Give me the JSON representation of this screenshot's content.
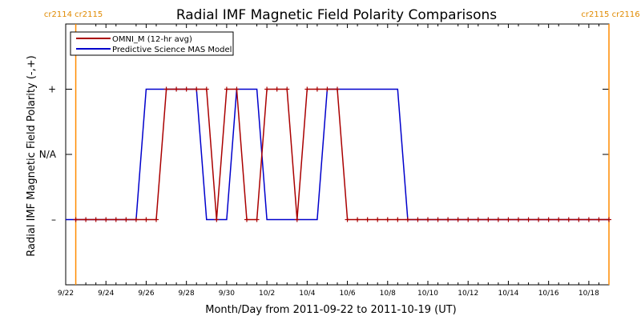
{
  "chart_data": {
    "type": "line",
    "title": "Radial IMF Magnetic Field Polarity Comparisons",
    "xlabel": "Month/Day from 2011-09-22 to 2011-10-19 (UT)",
    "ylabel": "Radial IMF Magnetic Field Polarity (-,+)",
    "xlim": [
      "2011-09-22",
      "2011-10-19"
    ],
    "ylim": [
      -2,
      2
    ],
    "x_ticks": [
      {
        "date": "2011-09-22",
        "label": "9/22"
      },
      {
        "date": "2011-09-24",
        "label": "9/24"
      },
      {
        "date": "2011-09-26",
        "label": "9/26"
      },
      {
        "date": "2011-09-28",
        "label": "9/28"
      },
      {
        "date": "2011-09-30",
        "label": "9/30"
      },
      {
        "date": "2011-10-02",
        "label": "10/2"
      },
      {
        "date": "2011-10-04",
        "label": "10/4"
      },
      {
        "date": "2011-10-06",
        "label": "10/6"
      },
      {
        "date": "2011-10-08",
        "label": "10/8"
      },
      {
        "date": "2011-10-10",
        "label": "10/10"
      },
      {
        "date": "2011-10-12",
        "label": "10/12"
      },
      {
        "date": "2011-10-14",
        "label": "10/14"
      },
      {
        "date": "2011-10-16",
        "label": "10/16"
      },
      {
        "date": "2011-10-18",
        "label": "10/18"
      }
    ],
    "y_ticks": [
      {
        "value": 1,
        "label": "+"
      },
      {
        "value": 0,
        "label": "N/A"
      },
      {
        "value": -1,
        "label": "–"
      }
    ],
    "carrington_rotations": [
      {
        "date": "2011-09-22 12:00",
        "labels": [
          "cr2114",
          "cr2115"
        ],
        "side": "left"
      },
      {
        "date": "2011-10-19 00:00",
        "labels": [
          "cr2115",
          "cr2116"
        ],
        "side": "right"
      }
    ],
    "legend": {
      "placement": "top-left"
    },
    "colors": {
      "omni": "#aa0000",
      "mas": "#0000cc",
      "cr_line": "#ff8c00",
      "cr_text": "#e08a00"
    },
    "series": [
      {
        "name": "OMNI_M (12-hr avg)",
        "marker": "plus",
        "points": [
          [
            "2011-09-22 12:00",
            -1
          ],
          [
            "2011-09-23 00:00",
            -1
          ],
          [
            "2011-09-23 12:00",
            -1
          ],
          [
            "2011-09-24 00:00",
            -1
          ],
          [
            "2011-09-24 12:00",
            -1
          ],
          [
            "2011-09-25 00:00",
            -1
          ],
          [
            "2011-09-25 12:00",
            -1
          ],
          [
            "2011-09-26 00:00",
            -1
          ],
          [
            "2011-09-26 12:00",
            -1
          ],
          [
            "2011-09-27 00:00",
            1
          ],
          [
            "2011-09-27 12:00",
            1
          ],
          [
            "2011-09-28 00:00",
            1
          ],
          [
            "2011-09-28 12:00",
            1
          ],
          [
            "2011-09-29 00:00",
            1
          ],
          [
            "2011-09-29 12:00",
            -1
          ],
          [
            "2011-09-30 00:00",
            1
          ],
          [
            "2011-09-30 12:00",
            1
          ],
          [
            "2011-10-01 00:00",
            -1
          ],
          [
            "2011-10-01 12:00",
            -1
          ],
          [
            "2011-10-02 00:00",
            1
          ],
          [
            "2011-10-02 12:00",
            1
          ],
          [
            "2011-10-03 00:00",
            1
          ],
          [
            "2011-10-03 12:00",
            -1
          ],
          [
            "2011-10-04 00:00",
            1
          ],
          [
            "2011-10-04 12:00",
            1
          ],
          [
            "2011-10-05 00:00",
            1
          ],
          [
            "2011-10-05 12:00",
            1
          ],
          [
            "2011-10-06 00:00",
            -1
          ],
          [
            "2011-10-06 12:00",
            -1
          ],
          [
            "2011-10-07 00:00",
            -1
          ],
          [
            "2011-10-07 12:00",
            -1
          ],
          [
            "2011-10-08 00:00",
            -1
          ],
          [
            "2011-10-08 12:00",
            -1
          ],
          [
            "2011-10-09 00:00",
            -1
          ],
          [
            "2011-10-09 12:00",
            -1
          ],
          [
            "2011-10-10 00:00",
            -1
          ],
          [
            "2011-10-10 12:00",
            -1
          ],
          [
            "2011-10-11 00:00",
            -1
          ],
          [
            "2011-10-11 12:00",
            -1
          ],
          [
            "2011-10-12 00:00",
            -1
          ],
          [
            "2011-10-12 12:00",
            -1
          ],
          [
            "2011-10-13 00:00",
            -1
          ],
          [
            "2011-10-13 12:00",
            -1
          ],
          [
            "2011-10-14 00:00",
            -1
          ],
          [
            "2011-10-14 12:00",
            -1
          ],
          [
            "2011-10-15 00:00",
            -1
          ],
          [
            "2011-10-15 12:00",
            -1
          ],
          [
            "2011-10-16 00:00",
            -1
          ],
          [
            "2011-10-16 12:00",
            -1
          ],
          [
            "2011-10-17 00:00",
            -1
          ],
          [
            "2011-10-17 12:00",
            -1
          ],
          [
            "2011-10-18 00:00",
            -1
          ],
          [
            "2011-10-18 12:00",
            -1
          ],
          [
            "2011-10-19 00:00",
            -1
          ]
        ]
      },
      {
        "name": "Predictive Science MAS Model",
        "marker": "none",
        "points": [
          [
            "2011-09-22 00:00",
            -1
          ],
          [
            "2011-09-25 12:00",
            -1
          ],
          [
            "2011-09-26 00:00",
            1
          ],
          [
            "2011-09-28 12:00",
            1
          ],
          [
            "2011-09-29 00:00",
            -1
          ],
          [
            "2011-09-30 00:00",
            -1
          ],
          [
            "2011-09-30 12:00",
            1
          ],
          [
            "2011-10-01 12:00",
            1
          ],
          [
            "2011-10-02 00:00",
            -1
          ],
          [
            "2011-10-04 12:00",
            -1
          ],
          [
            "2011-10-05 00:00",
            1
          ],
          [
            "2011-10-08 12:00",
            1
          ],
          [
            "2011-10-09 00:00",
            -1
          ],
          [
            "2011-10-19 00:00",
            -1
          ]
        ]
      }
    ]
  }
}
